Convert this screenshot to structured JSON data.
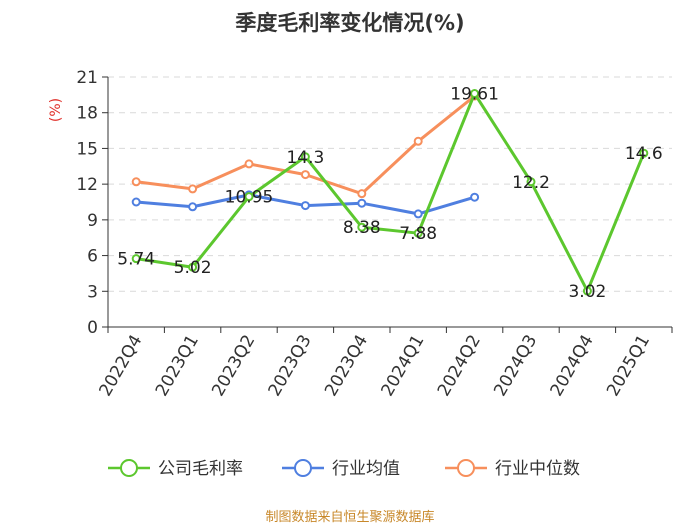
{
  "chart_data": {
    "type": "line",
    "title": "季度毛利率变化情况(%)",
    "ylabel": "(%)",
    "xlabel": "",
    "ylim": [
      0,
      21
    ],
    "yticks": [
      0,
      3,
      6,
      9,
      12,
      15,
      18,
      21
    ],
    "grid": true,
    "legend_position": "bottom",
    "categories": [
      "2022Q4",
      "2023Q1",
      "2023Q2",
      "2023Q3",
      "2023Q4",
      "2024Q1",
      "2024Q2",
      "2024Q3",
      "2024Q4",
      "2025Q1"
    ],
    "series": [
      {
        "name": "公司毛利率",
        "color": "#5cc72e",
        "values": [
          5.74,
          5.02,
          10.95,
          14.3,
          8.38,
          7.88,
          19.61,
          12.2,
          3.02,
          14.6
        ],
        "labels": [
          "5.74",
          "5.02",
          "10.95",
          "14.3",
          "8.38",
          "7.88",
          "19.61",
          "12.2",
          "3.02",
          "14.6"
        ]
      },
      {
        "name": "行业均值",
        "color": "#4f7fe0",
        "values": [
          10.5,
          10.1,
          11.1,
          10.2,
          10.4,
          9.5,
          10.9,
          null,
          null,
          null
        ]
      },
      {
        "name": "行业中位数",
        "color": "#f78f5c",
        "values": [
          12.2,
          11.6,
          13.7,
          12.8,
          11.2,
          15.6,
          19.4,
          null,
          null,
          null
        ]
      }
    ],
    "source": "制图数据来自恒生聚源数据库"
  }
}
